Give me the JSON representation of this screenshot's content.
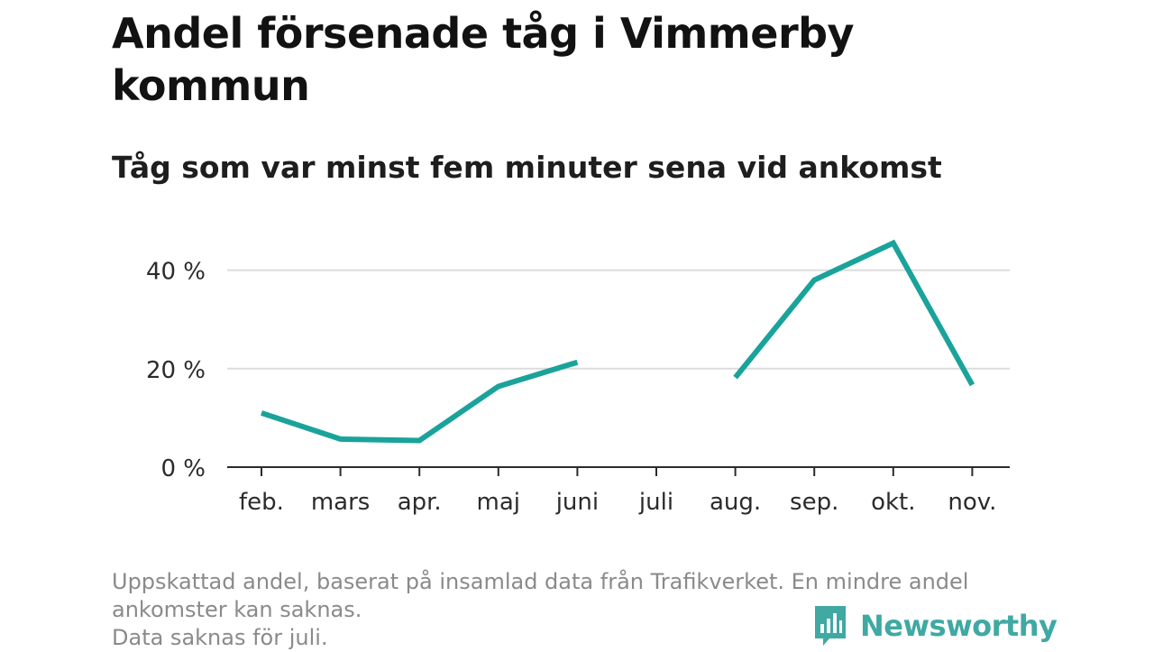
{
  "chart_data": {
    "type": "line",
    "title": "Andel försenade tåg i Vimmerby kommun",
    "subtitle": "Tåg som var minst fem minuter sena vid ankomst",
    "categories": [
      "feb.",
      "mars",
      "apr.",
      "maj",
      "juni",
      "juli",
      "aug.",
      "sep.",
      "okt.",
      "nov."
    ],
    "series": [
      {
        "name": "Andel försenade tåg",
        "color": "#1aa39a",
        "values": [
          11.0,
          5.7,
          5.4,
          16.4,
          21.3,
          null,
          18.2,
          38.0,
          45.5,
          16.7
        ]
      }
    ],
    "y_ticks": [
      0,
      20,
      40
    ],
    "y_tick_labels": [
      "0 %",
      "20 %",
      "40 %"
    ],
    "ylim": [
      0,
      50
    ],
    "grid": true,
    "xlabel": "",
    "ylabel": ""
  },
  "notes": {
    "line1": "Uppskattad andel, baserat på insamlad data från Trafikverket. En mindre andel ankomster kan saknas.",
    "line2": "Data saknas för juli."
  },
  "brand": {
    "name": "Newsworthy",
    "logo_icon": "bar-chart-icon",
    "color": "#3fa9a2"
  }
}
